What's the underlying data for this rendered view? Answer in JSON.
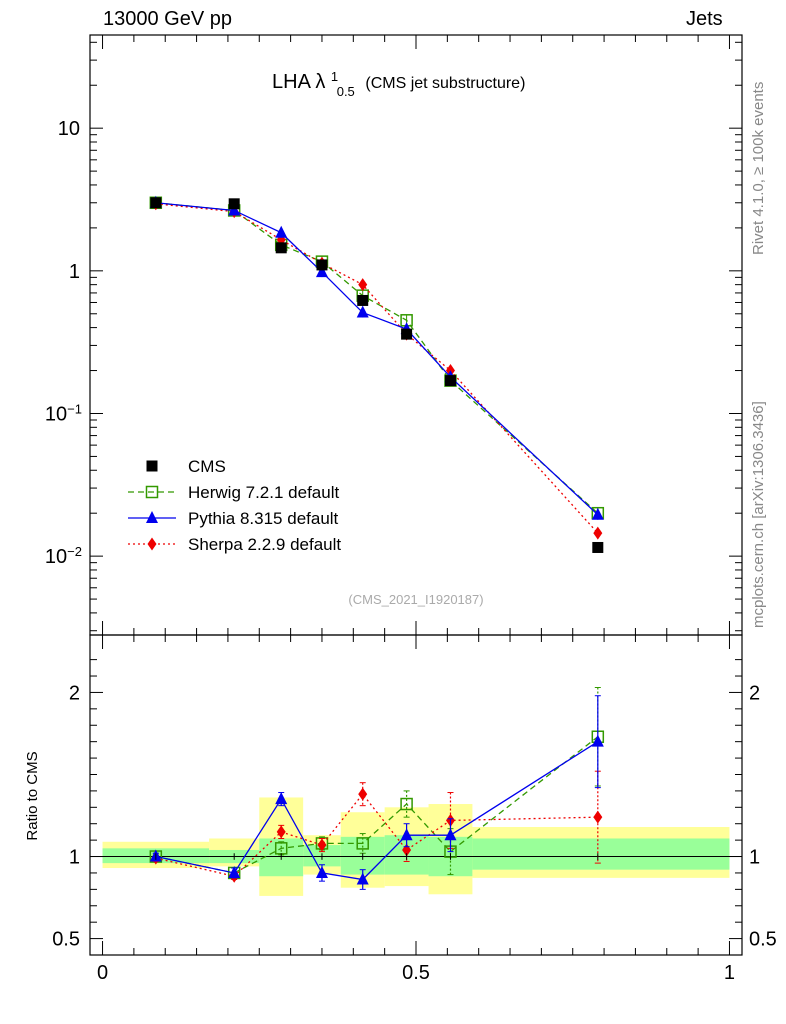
{
  "header": {
    "left": "13000 GeV pp",
    "right": "Jets"
  },
  "side_labels": {
    "rivet": "Rivet 4.1.0, ≥ 100k events",
    "mcplots": "mcplots.cern.ch [arXiv:1306.3436]"
  },
  "colors": {
    "cms": "#000000",
    "herwig": "#339900",
    "pythia": "#0000ee",
    "sherpa": "#ee0000",
    "band_outer": "#ffff99",
    "band_inner": "#99ff99"
  },
  "chart_data": {
    "type": "line",
    "title": "LHA λ",
    "title_sup": "1",
    "title_sub": "0.5",
    "title_suffix": "(CMS jet substructure)",
    "watermark": "(CMS_2021_I1920187)",
    "x": [
      0.085,
      0.21,
      0.285,
      0.35,
      0.415,
      0.485,
      0.555,
      0.79
    ],
    "xlim": [
      -0.02,
      1.02
    ],
    "x_ticks": [
      0,
      0.5,
      1
    ],
    "x_tick_labels": [
      "0",
      "0.5",
      "1"
    ],
    "main": {
      "yscale": "log",
      "ylim": [
        0.0028,
        45
      ],
      "y_tick_labels": [
        "10",
        "1",
        "10−1",
        "10−2"
      ],
      "series": [
        {
          "name": "CMS",
          "values": [
            3.0,
            2.95,
            1.45,
            1.1,
            0.62,
            0.36,
            0.17,
            0.0115
          ]
        },
        {
          "name": "Herwig 7.2.1 default",
          "values": [
            3.0,
            2.65,
            1.52,
            1.16,
            0.67,
            0.45,
            0.17,
            0.02
          ]
        },
        {
          "name": "Pythia 8.315 default",
          "values": [
            3.0,
            2.65,
            1.85,
            0.98,
            0.51,
            0.39,
            0.18,
            0.0195
          ]
        },
        {
          "name": "Sherpa 2.2.9 default",
          "values": [
            2.95,
            2.6,
            1.65,
            1.13,
            0.8,
            0.36,
            0.2,
            0.0145
          ]
        }
      ]
    },
    "ratio": {
      "ylabel": "Ratio to CMS",
      "ylim": [
        0.4,
        2.35
      ],
      "y_tick_labels": [
        "2",
        "1",
        "0.5"
      ],
      "bins": [
        0,
        0.17,
        0.25,
        0.32,
        0.38,
        0.45,
        0.52,
        0.59,
        1
      ],
      "band_outer": [
        [
          0.93,
          1.09
        ],
        [
          0.94,
          1.11
        ],
        [
          0.76,
          1.36
        ],
        [
          0.89,
          1.13
        ],
        [
          0.81,
          1.27
        ],
        [
          0.82,
          1.3
        ],
        [
          0.77,
          1.32
        ],
        [
          0.87,
          1.18
        ]
      ],
      "band_inner": [
        [
          0.96,
          1.05
        ],
        [
          0.96,
          1.04
        ],
        [
          0.88,
          1.11
        ],
        [
          0.94,
          1.07
        ],
        [
          0.89,
          1.12
        ],
        [
          0.89,
          1.13
        ],
        [
          0.88,
          1.12
        ],
        [
          0.92,
          1.11
        ]
      ],
      "series": [
        {
          "name": "Herwig 7.2.1 default",
          "values": [
            1.0,
            0.9,
            1.05,
            1.08,
            1.08,
            1.32,
            1.03,
            1.73
          ],
          "errors": [
            0.02,
            0.03,
            0.04,
            0.04,
            0.06,
            0.08,
            0.14,
            0.3
          ]
        },
        {
          "name": "Pythia 8.315 default",
          "values": [
            1.0,
            0.9,
            1.35,
            0.9,
            0.86,
            1.13,
            1.13,
            1.7
          ],
          "errors": [
            0.02,
            0.03,
            0.04,
            0.05,
            0.06,
            0.07,
            0.1,
            0.28
          ]
        },
        {
          "name": "Sherpa 2.2.9 default",
          "values": [
            0.99,
            0.88,
            1.15,
            1.07,
            1.38,
            1.04,
            1.22,
            1.24
          ],
          "errors": [
            0.02,
            0.02,
            0.04,
            0.04,
            0.07,
            0.07,
            0.17,
            0.28
          ]
        }
      ]
    },
    "legend": {
      "position": "lower-left",
      "entries": [
        "CMS",
        "Herwig 7.2.1 default",
        "Pythia 8.315 default",
        "Sherpa 2.2.9 default"
      ]
    }
  }
}
